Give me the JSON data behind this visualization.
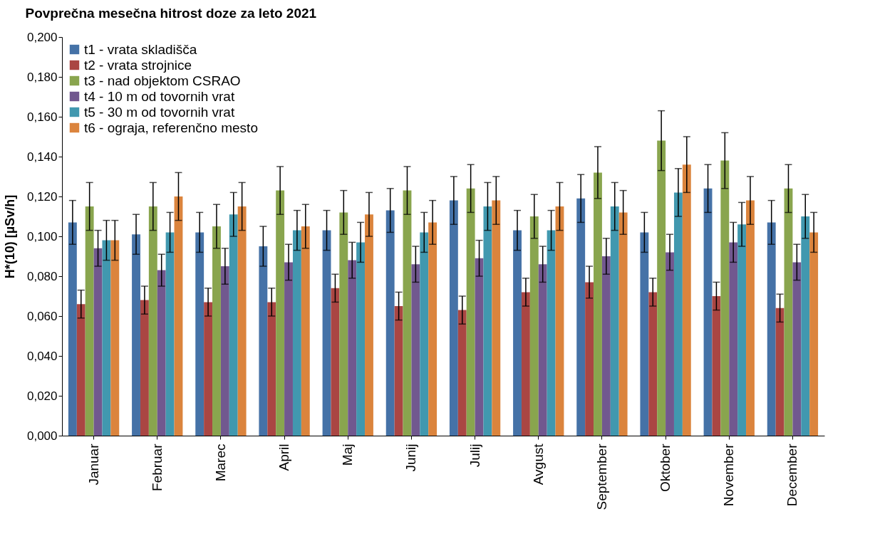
{
  "chart_data": {
    "type": "bar",
    "title": "Povprečna mesečna hitrost doze za leto 2021",
    "ylabel": "H*(10) [µSv/h]",
    "categories": [
      "Januar",
      "Februar",
      "Marec",
      "April",
      "Maj",
      "Junij",
      "Julij",
      "Avgust",
      "September",
      "Oktober",
      "November",
      "December"
    ],
    "series": [
      {
        "name": "t1 - vrata skladišča",
        "color": "#4572a7",
        "values": [
          0.107,
          0.101,
          0.102,
          0.095,
          0.103,
          0.113,
          0.118,
          0.103,
          0.119,
          0.102,
          0.124,
          0.107
        ],
        "errors": [
          0.011,
          0.01,
          0.01,
          0.01,
          0.01,
          0.011,
          0.012,
          0.01,
          0.012,
          0.01,
          0.012,
          0.011
        ]
      },
      {
        "name": "t2 - vrata strojnice",
        "color": "#aa4643",
        "values": [
          0.066,
          0.068,
          0.067,
          0.067,
          0.074,
          0.065,
          0.063,
          0.072,
          0.077,
          0.072,
          0.07,
          0.064
        ],
        "errors": [
          0.007,
          0.007,
          0.007,
          0.007,
          0.007,
          0.007,
          0.007,
          0.007,
          0.008,
          0.007,
          0.007,
          0.007
        ]
      },
      {
        "name": "t3 - nad objektom CSRAO",
        "color": "#89a54e",
        "values": [
          0.115,
          0.115,
          0.105,
          0.123,
          0.112,
          0.123,
          0.124,
          0.11,
          0.132,
          0.148,
          0.138,
          0.124
        ],
        "errors": [
          0.012,
          0.012,
          0.011,
          0.012,
          0.011,
          0.012,
          0.012,
          0.011,
          0.013,
          0.015,
          0.014,
          0.012
        ]
      },
      {
        "name": "t4 - 10 m od tovornih vrat",
        "color": "#71588f",
        "values": [
          0.094,
          0.083,
          0.085,
          0.087,
          0.088,
          0.086,
          0.089,
          0.086,
          0.09,
          0.092,
          0.097,
          0.087
        ],
        "errors": [
          0.009,
          0.008,
          0.009,
          0.009,
          0.009,
          0.009,
          0.009,
          0.009,
          0.009,
          0.009,
          0.01,
          0.009
        ]
      },
      {
        "name": "t5 - 30 m od tovornih vrat",
        "color": "#4198af",
        "values": [
          0.098,
          0.102,
          0.111,
          0.103,
          0.097,
          0.102,
          0.115,
          0.103,
          0.115,
          0.122,
          0.106,
          0.11
        ],
        "errors": [
          0.01,
          0.01,
          0.011,
          0.01,
          0.01,
          0.01,
          0.012,
          0.01,
          0.012,
          0.012,
          0.011,
          0.011
        ]
      },
      {
        "name": "t6 - ograja, referenčno mesto",
        "color": "#db843d",
        "values": [
          0.098,
          0.12,
          0.115,
          0.105,
          0.111,
          0.107,
          0.118,
          0.115,
          0.112,
          0.136,
          0.118,
          0.102
        ],
        "errors": [
          0.01,
          0.012,
          0.012,
          0.011,
          0.011,
          0.011,
          0.012,
          0.012,
          0.011,
          0.014,
          0.012,
          0.01
        ]
      }
    ],
    "ylim": [
      0,
      0.2
    ],
    "yticks": [
      {
        "value": 0,
        "label": "0,000"
      },
      {
        "value": 0.02,
        "label": "0,020"
      },
      {
        "value": 0.04,
        "label": "0,040"
      },
      {
        "value": 0.06,
        "label": "0,060"
      },
      {
        "value": 0.08,
        "label": "0,080"
      },
      {
        "value": 0.1,
        "label": "0,100"
      },
      {
        "value": 0.12,
        "label": "0,120"
      },
      {
        "value": 0.14,
        "label": "0,140"
      },
      {
        "value": 0.16,
        "label": "0,160"
      },
      {
        "value": 0.18,
        "label": "0,180"
      },
      {
        "value": 0.2,
        "label": "0,200"
      }
    ],
    "legend": "top left"
  }
}
